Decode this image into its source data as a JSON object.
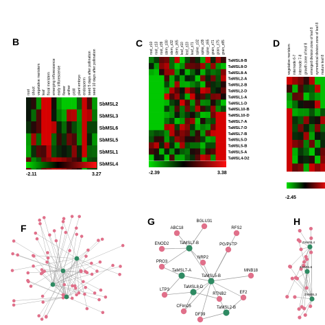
{
  "panels": {
    "B": {
      "label": "B",
      "columns": [
        "root",
        "shoot",
        "vegetative meristem",
        "leaf",
        "floral meristem",
        "emerging inflorescence",
        "early inflorescence",
        "flower",
        "anther",
        "pistil",
        "plant embryo",
        "endosperm",
        "seed 5 days after pollination",
        "seed 10 days after pollination"
      ],
      "rows": [
        "SbMSL2",
        "SbMSL3",
        "SbMSL6",
        "SbMSL5",
        "SbMSL1",
        "SbMSL4"
      ],
      "scale_min": "-2.11",
      "scale_max": "3.27"
    },
    "C": {
      "label": "C",
      "columns": [
        "root_z10",
        "root_z13",
        "root_z39",
        "stem_z30",
        "stem_z32",
        "stem_z65",
        "leaf_z10",
        "leaf_z23",
        "leaf_z71",
        "spike_z32",
        "spike_z39",
        "spike_z65",
        "grain_z71",
        "grain_z75",
        "grain_z85"
      ],
      "rows": [
        "TaMSL8-B",
        "TaMSL8-D",
        "TaMSL8-A",
        "TaMSL2-A",
        "TaMSL2-B",
        "TaMSL2-D",
        "TaMSL1-A",
        "TaMSL1-D",
        "TaMSL10-B",
        "TaMSL10-D",
        "TaMSL7-A",
        "TaMSL7-D",
        "TaMSL7-B",
        "TaMSL5-D",
        "TaMSL5-B",
        "TaMSL5-A",
        "TaMSL4-D2"
      ],
      "scale_min": "-2.39",
      "scale_max": "3.38"
    },
    "D": {
      "label": "D",
      "columns": [
        "vegetative meristem",
        "internode 6-7",
        "internode 7-8",
        "growth zone of leaf 8",
        "emerged division zone of leaf 8",
        "symmetrical division zone of leaf 8",
        "mature leaf 8"
      ],
      "scale_min": "-2.45"
    },
    "F": {
      "label": "F"
    },
    "G": {
      "label": "G",
      "nodes": [
        {
          "label": "BGLU31",
          "kind": "target"
        },
        {
          "label": "ABC18",
          "kind": "target"
        },
        {
          "label": "RFS2",
          "kind": "target"
        },
        {
          "label": "ENOD2",
          "kind": "target"
        },
        {
          "label": "TaMSL7-B",
          "kind": "msl"
        },
        {
          "label": "PG/PI-TP",
          "kind": "target"
        },
        {
          "label": "PRO3",
          "kind": "target"
        },
        {
          "label": "NRP2",
          "kind": "target"
        },
        {
          "label": "TaMSL7-A",
          "kind": "msl"
        },
        {
          "label": "TaMSL5-B",
          "kind": "msl"
        },
        {
          "label": "MNB18",
          "kind": "target"
        },
        {
          "label": "TaMSL8-D",
          "kind": "msl"
        },
        {
          "label": "LTP3",
          "kind": "target"
        },
        {
          "label": "RTNB2",
          "kind": "target"
        },
        {
          "label": "EF2",
          "kind": "target"
        },
        {
          "label": "CFIm25",
          "kind": "target"
        },
        {
          "label": "TaMSL2-B",
          "kind": "msl"
        },
        {
          "label": "DF39",
          "kind": "target"
        }
      ]
    },
    "H": {
      "label": "H",
      "nodes": [
        "ZmMSL4",
        "ZmMSL6",
        "ZmMSL3"
      ]
    }
  },
  "colors": {
    "high": "#e01010",
    "low": "#10c010",
    "mid": "#000000",
    "msl_node": "#2e8a62",
    "target_node": "#e0708a",
    "edge": "#9a9a9a"
  }
}
